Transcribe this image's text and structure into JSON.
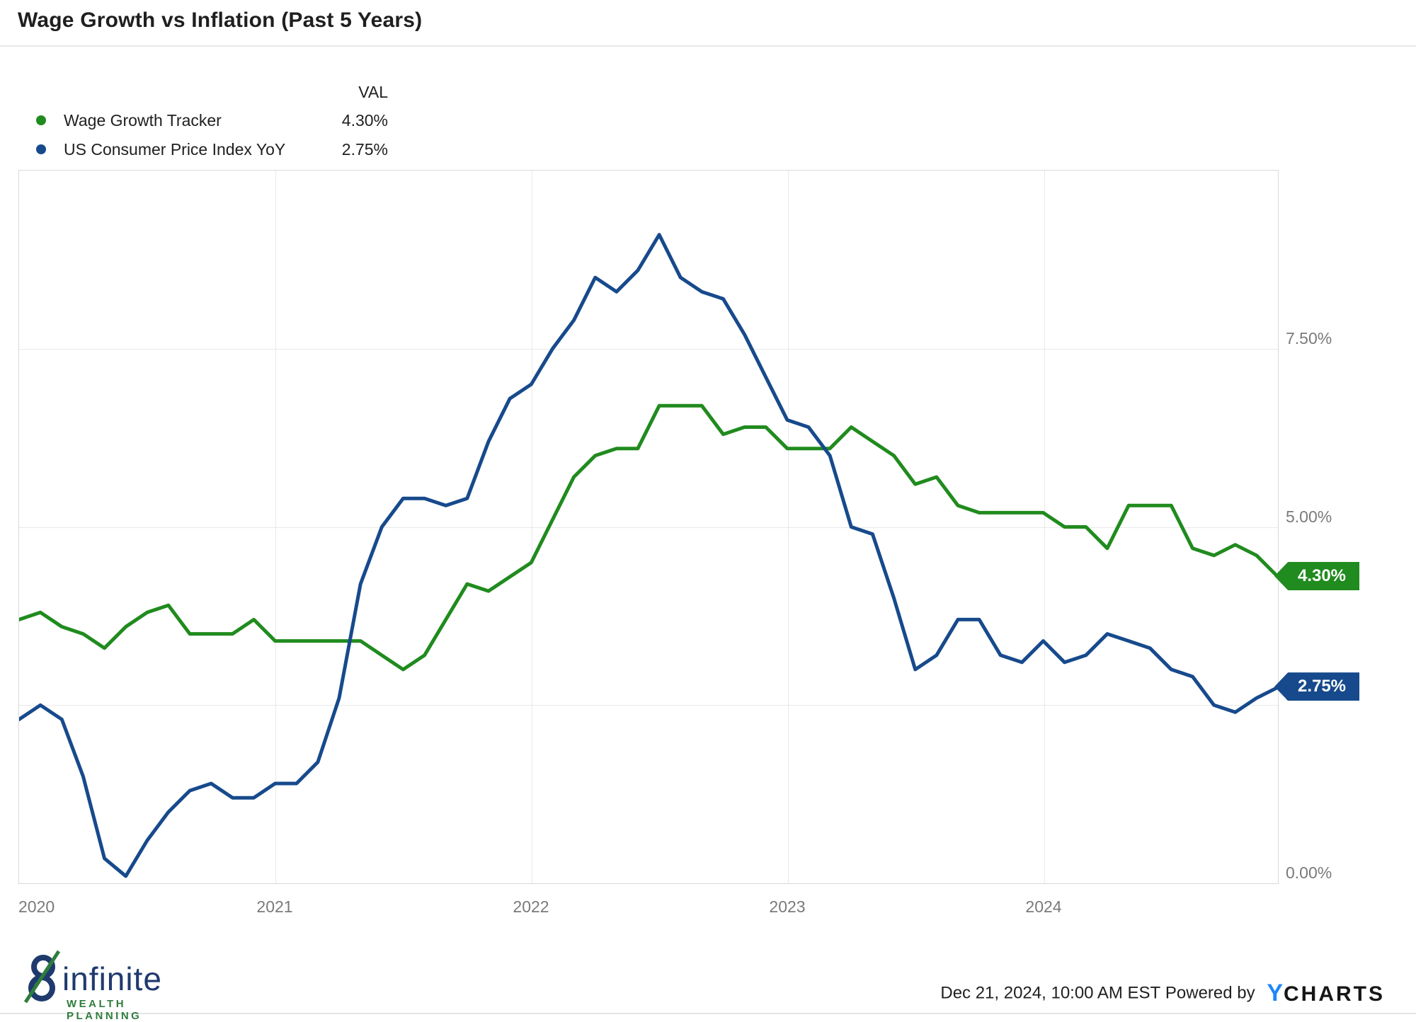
{
  "title": "Wage Growth vs Inflation (Past 5 Years)",
  "legend": {
    "val_header": "VAL",
    "rows": [
      {
        "label": "Wage Growth Tracker",
        "value": "4.30%"
      },
      {
        "label": "US Consumer Price Index YoY",
        "value": "2.75%"
      }
    ]
  },
  "chart_data": {
    "type": "line",
    "x_unit": "month",
    "x_range": [
      "Dec 2019",
      "Nov 2024"
    ],
    "x_axis_ticks": [
      "2020",
      "2021",
      "2022",
      "2023",
      "2024"
    ],
    "y_axis_ticks": [
      "7.50%",
      "5.00%",
      "2.50%",
      "0.00%"
    ],
    "ylim": [
      0,
      10
    ],
    "grid": true,
    "legend_position": "top-left",
    "series": [
      {
        "name": "Wage Growth Tracker",
        "color": "#208b1e",
        "end_label": "4.30%",
        "values": [
          3.7,
          3.8,
          3.6,
          3.5,
          3.3,
          3.6,
          3.8,
          3.9,
          3.5,
          3.5,
          3.5,
          3.7,
          3.4,
          3.4,
          3.4,
          3.4,
          3.4,
          3.2,
          3.0,
          3.2,
          3.7,
          4.2,
          4.1,
          4.3,
          4.5,
          5.1,
          5.7,
          6.0,
          6.1,
          6.1,
          6.7,
          6.7,
          6.7,
          6.3,
          6.4,
          6.4,
          6.1,
          6.1,
          6.1,
          6.4,
          6.2,
          6.0,
          5.6,
          5.7,
          5.3,
          5.2,
          5.2,
          5.2,
          5.2,
          5.0,
          5.0,
          4.7,
          5.3,
          5.3,
          5.3,
          4.7,
          4.6,
          4.75,
          4.6,
          4.3
        ]
      },
      {
        "name": "US Consumer Price Index YoY",
        "color": "#174a8c",
        "end_label": "2.75%",
        "values": [
          2.3,
          2.5,
          2.3,
          1.5,
          0.35,
          0.1,
          0.6,
          1.0,
          1.3,
          1.4,
          1.2,
          1.2,
          1.4,
          1.4,
          1.7,
          2.6,
          4.2,
          5.0,
          5.4,
          5.4,
          5.3,
          5.4,
          6.2,
          6.8,
          7.0,
          7.5,
          7.9,
          8.5,
          8.3,
          8.6,
          9.1,
          8.5,
          8.3,
          8.2,
          7.7,
          7.1,
          6.5,
          6.4,
          6.0,
          5.0,
          4.9,
          4.0,
          3.0,
          3.2,
          3.7,
          3.7,
          3.2,
          3.1,
          3.4,
          3.1,
          3.2,
          3.5,
          3.4,
          3.3,
          3.0,
          2.9,
          2.5,
          2.4,
          2.6,
          2.75
        ]
      }
    ]
  },
  "footer": {
    "timestamp": "Dec 21, 2024, 10:00 AM EST",
    "powered_by": "Powered by",
    "ycharts_y": "Y",
    "ycharts_rest": "CHARTS",
    "brand_name": "infinite",
    "brand_subtitle": "WEALTH PLANNING"
  }
}
